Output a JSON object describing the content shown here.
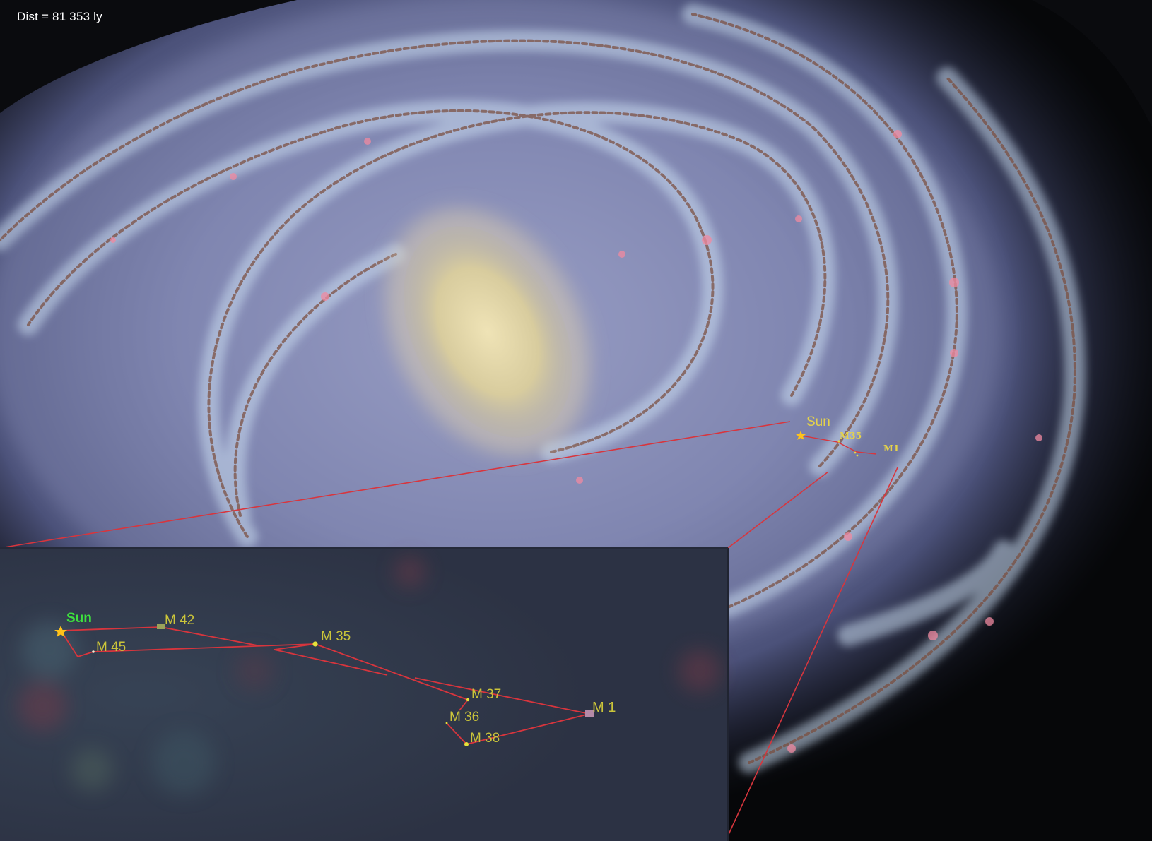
{
  "distance_readout": "Dist = 81 353 ly",
  "colors": {
    "connector_line": "#d8353d",
    "label_yellow": "#e6d34a",
    "inset_label": "#cbc53a",
    "inset_sun_label": "#3de23d",
    "sun_marker": "#ffc21a"
  },
  "galaxy_labels": {
    "sun": "Sun",
    "m35": "M35",
    "m1": "M1"
  },
  "inset_labels": {
    "sun": "Sun",
    "m42": "M 42",
    "m45": "M 45",
    "m35": "M 35",
    "m37": "M 37",
    "m36": "M 36",
    "m38": "M 38",
    "m1": "M 1"
  },
  "icons": {
    "sun": "star-icon",
    "nebula": "square-marker-icon",
    "cluster": "dot-marker-icon"
  }
}
